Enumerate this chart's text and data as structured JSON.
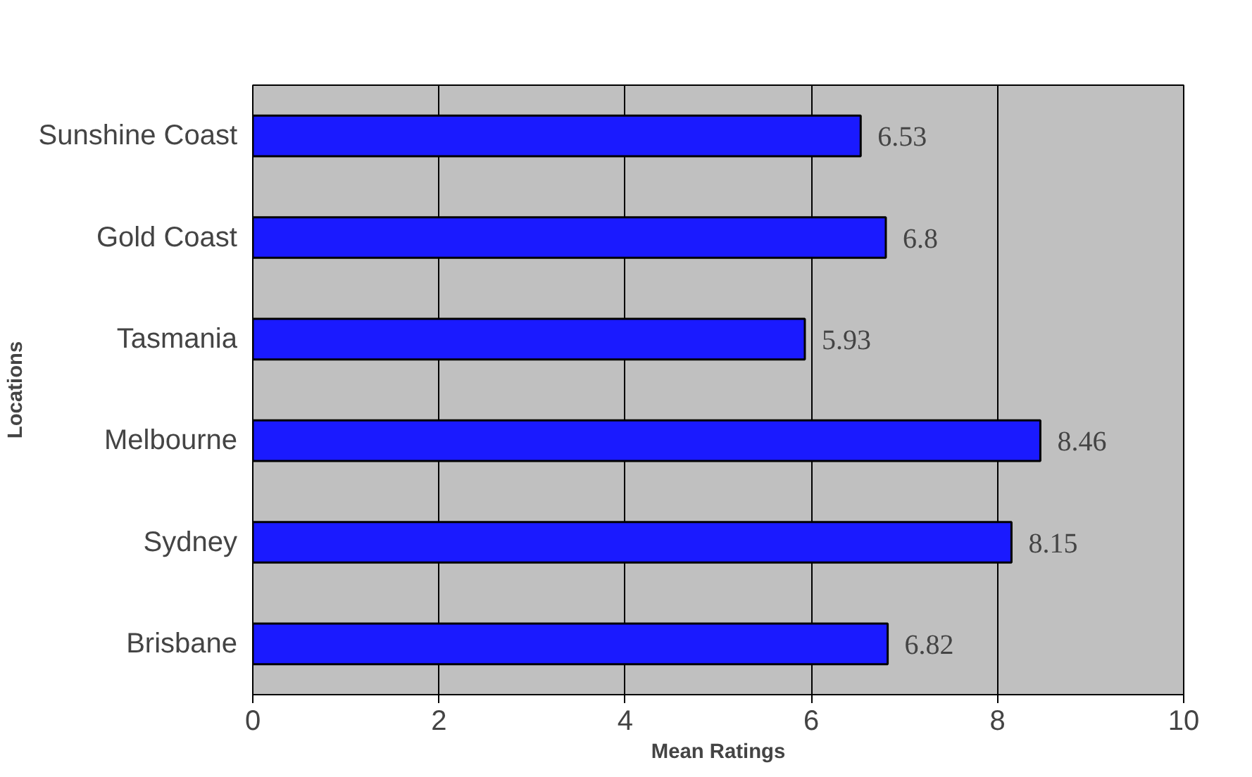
{
  "chart_data": {
    "type": "bar",
    "orientation": "horizontal",
    "xlabel": "Mean Ratings",
    "ylabel": "Locations",
    "categories": [
      "Sunshine Coast",
      "Gold Coast",
      "Tasmania",
      "Melbourne",
      "Sydney",
      "Brisbane"
    ],
    "values": [
      6.53,
      6.8,
      5.93,
      8.46,
      8.15,
      6.82
    ],
    "color": "#1a1aff",
    "xlim": [
      0,
      10
    ],
    "xticks": [
      0,
      2,
      4,
      6,
      8,
      10
    ],
    "grid": "x",
    "data_labels": true
  }
}
